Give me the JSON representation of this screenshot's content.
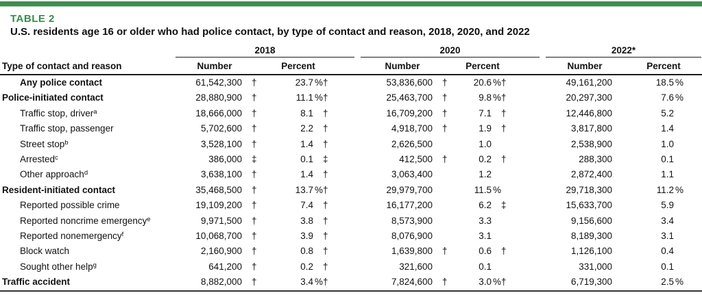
{
  "colors": {
    "accent_green": "#3F8D4F",
    "table_label_green": "#3A8A49"
  },
  "header": {
    "table_label": "TABLE 2",
    "title": "U.S. residents age 16 or older who had police contact, by type of contact and reason, 2018, 2020, and 2022"
  },
  "table": {
    "stub_header": "Type of contact and reason",
    "year_groups": [
      "2018",
      "2020",
      "2022*"
    ],
    "sub_headers": [
      "Number",
      "Percent"
    ],
    "symbols": {
      "dagger": "†",
      "double_dagger": "‡",
      "percent": "%"
    },
    "rows": [
      {
        "label": "Any police contact",
        "sup": "",
        "bold": true,
        "indent": 1,
        "cells": [
          [
            "61,542,300",
            "",
            "†"
          ],
          [
            "23.7",
            "%",
            "†"
          ],
          [
            "53,836,600",
            "",
            "†"
          ],
          [
            "20.6",
            "%",
            "†"
          ],
          [
            "49,161,200",
            "",
            ""
          ],
          [
            "18.5",
            "%",
            ""
          ]
        ]
      },
      {
        "label": "Police-initiated contact",
        "sup": "",
        "bold": true,
        "indent": 0,
        "cells": [
          [
            "28,880,900",
            "",
            "†"
          ],
          [
            "11.1",
            "%",
            "†"
          ],
          [
            "25,463,700",
            "",
            "†"
          ],
          [
            "9.8",
            "%",
            "†"
          ],
          [
            "20,297,300",
            "",
            ""
          ],
          [
            "7.6",
            "%",
            ""
          ]
        ]
      },
      {
        "label": "Traffic stop, driver",
        "sup": "a",
        "bold": false,
        "indent": 1,
        "cells": [
          [
            "18,666,000",
            "",
            "†"
          ],
          [
            "8.1",
            "",
            "†"
          ],
          [
            "16,709,200",
            "",
            "†"
          ],
          [
            "7.1",
            "",
            "†"
          ],
          [
            "12,446,800",
            "",
            ""
          ],
          [
            "5.2",
            "",
            ""
          ]
        ]
      },
      {
        "label": "Traffic stop, passenger",
        "sup": "",
        "bold": false,
        "indent": 1,
        "cells": [
          [
            "5,702,600",
            "",
            "†"
          ],
          [
            "2.2",
            "",
            "†"
          ],
          [
            "4,918,700",
            "",
            "†"
          ],
          [
            "1.9",
            "",
            "†"
          ],
          [
            "3,817,800",
            "",
            ""
          ],
          [
            "1.4",
            "",
            ""
          ]
        ]
      },
      {
        "label": "Street stop",
        "sup": "b",
        "bold": false,
        "indent": 1,
        "cells": [
          [
            "3,528,100",
            "",
            "†"
          ],
          [
            "1.4",
            "",
            "†"
          ],
          [
            "2,626,500",
            "",
            ""
          ],
          [
            "1.0",
            "",
            ""
          ],
          [
            "2,538,900",
            "",
            ""
          ],
          [
            "1.0",
            "",
            ""
          ]
        ]
      },
      {
        "label": "Arrested",
        "sup": "c",
        "bold": false,
        "indent": 1,
        "cells": [
          [
            "386,000",
            "",
            "‡"
          ],
          [
            "0.1",
            "",
            "‡"
          ],
          [
            "412,500",
            "",
            "†"
          ],
          [
            "0.2",
            "",
            "†"
          ],
          [
            "288,300",
            "",
            ""
          ],
          [
            "0.1",
            "",
            ""
          ]
        ]
      },
      {
        "label": "Other approach",
        "sup": "d",
        "bold": false,
        "indent": 1,
        "cells": [
          [
            "3,638,100",
            "",
            "†"
          ],
          [
            "1.4",
            "",
            "†"
          ],
          [
            "3,063,400",
            "",
            ""
          ],
          [
            "1.2",
            "",
            ""
          ],
          [
            "2,872,400",
            "",
            ""
          ],
          [
            "1.1",
            "",
            ""
          ]
        ]
      },
      {
        "label": "Resident-initiated contact",
        "sup": "",
        "bold": true,
        "indent": 0,
        "cells": [
          [
            "35,468,500",
            "",
            "†"
          ],
          [
            "13.7",
            "%",
            "†"
          ],
          [
            "29,979,700",
            "",
            ""
          ],
          [
            "11.5",
            "%",
            ""
          ],
          [
            "29,718,300",
            "",
            ""
          ],
          [
            "11.2",
            "%",
            ""
          ]
        ]
      },
      {
        "label": "Reported possible crime",
        "sup": "",
        "bold": false,
        "indent": 1,
        "cells": [
          [
            "19,109,200",
            "",
            "†"
          ],
          [
            "7.4",
            "",
            "†"
          ],
          [
            "16,177,200",
            "",
            ""
          ],
          [
            "6.2",
            "",
            "‡"
          ],
          [
            "15,633,700",
            "",
            ""
          ],
          [
            "5.9",
            "",
            ""
          ]
        ]
      },
      {
        "label": "Reported noncrime emergency",
        "sup": "e",
        "bold": false,
        "indent": 1,
        "cells": [
          [
            "9,971,500",
            "",
            "†"
          ],
          [
            "3.8",
            "",
            "†"
          ],
          [
            "8,573,900",
            "",
            ""
          ],
          [
            "3.3",
            "",
            ""
          ],
          [
            "9,156,600",
            "",
            ""
          ],
          [
            "3.4",
            "",
            ""
          ]
        ]
      },
      {
        "label": "Reported nonemergency",
        "sup": "f",
        "bold": false,
        "indent": 1,
        "cells": [
          [
            "10,068,700",
            "",
            "†"
          ],
          [
            "3.9",
            "",
            "†"
          ],
          [
            "8,076,900",
            "",
            ""
          ],
          [
            "3.1",
            "",
            ""
          ],
          [
            "8,189,300",
            "",
            ""
          ],
          [
            "3.1",
            "",
            ""
          ]
        ]
      },
      {
        "label": "Block watch",
        "sup": "",
        "bold": false,
        "indent": 1,
        "cells": [
          [
            "2,160,900",
            "",
            "†"
          ],
          [
            "0.8",
            "",
            "†"
          ],
          [
            "1,639,800",
            "",
            "†"
          ],
          [
            "0.6",
            "",
            "†"
          ],
          [
            "1,126,100",
            "",
            ""
          ],
          [
            "0.4",
            "",
            ""
          ]
        ]
      },
      {
        "label": "Sought other help",
        "sup": "g",
        "bold": false,
        "indent": 1,
        "cells": [
          [
            "641,200",
            "",
            "†"
          ],
          [
            "0.2",
            "",
            "†"
          ],
          [
            "321,600",
            "",
            ""
          ],
          [
            "0.1",
            "",
            ""
          ],
          [
            "331,000",
            "",
            ""
          ],
          [
            "0.1",
            "",
            ""
          ]
        ]
      },
      {
        "label": "Traffic accident",
        "sup": "",
        "bold": true,
        "indent": 0,
        "cells": [
          [
            "8,882,000",
            "",
            "†"
          ],
          [
            "3.4",
            "%",
            "†"
          ],
          [
            "7,824,600",
            "",
            "†"
          ],
          [
            "3.0",
            "%",
            "†"
          ],
          [
            "6,719,300",
            "",
            ""
          ],
          [
            "2.5",
            "%",
            ""
          ]
        ]
      }
    ]
  }
}
